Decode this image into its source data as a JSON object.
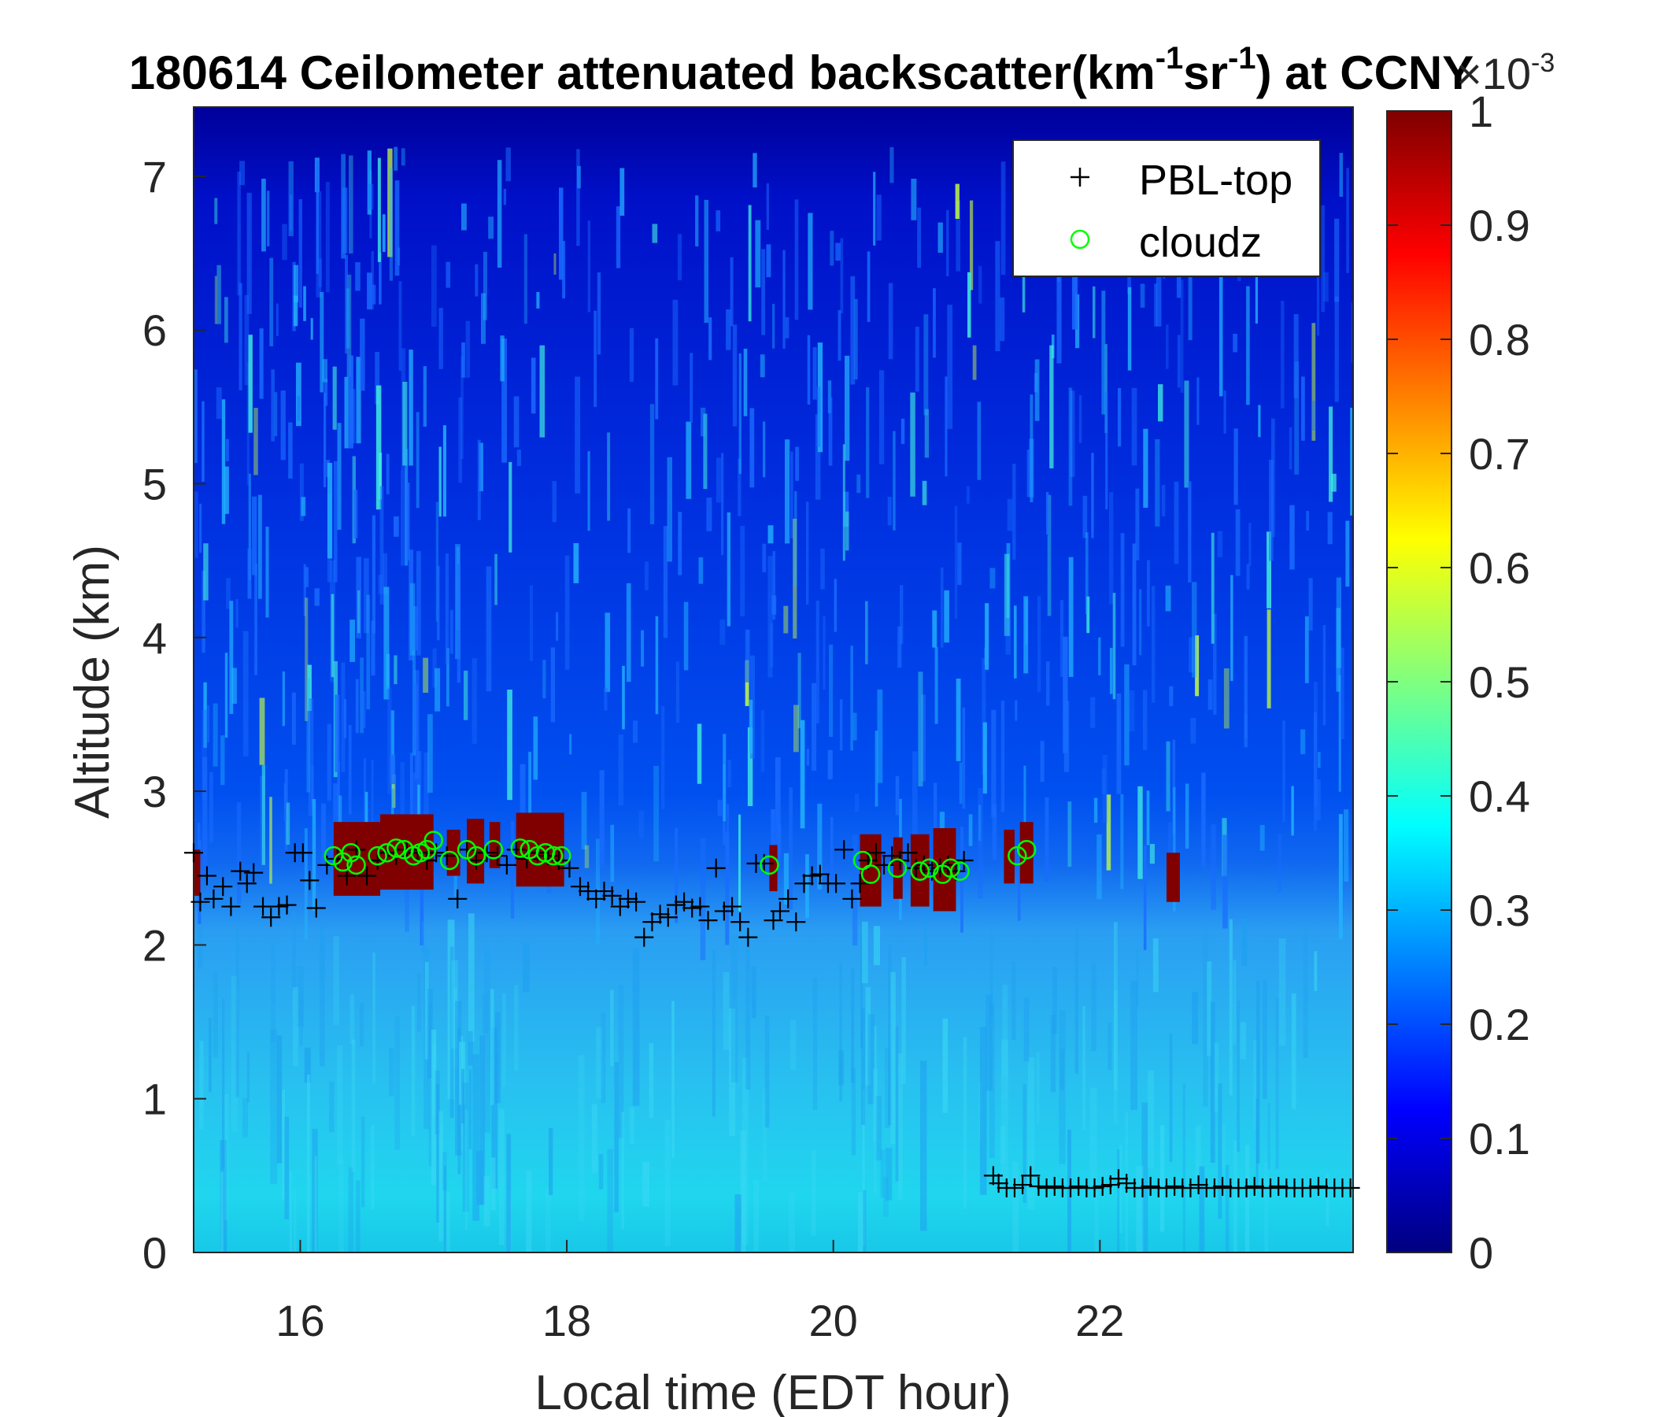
{
  "chart_data": {
    "type": "heatmap",
    "title": {
      "main": "180614 Ceilometer attenuated backscatter(km",
      "sup1": "-1",
      "mid": "sr",
      "sup2": "-1",
      "end": ") at CCNY"
    },
    "xlabel": "Local time (EDT hour)",
    "ylabel": "Altitude (km)",
    "xlim": [
      15.2,
      23.9
    ],
    "ylim": [
      0,
      7.45
    ],
    "xticks": [
      "16",
      "18",
      "20",
      "22"
    ],
    "yticks": [
      "0",
      "1",
      "2",
      "3",
      "4",
      "5",
      "6",
      "7"
    ],
    "colorbar": {
      "min": 0,
      "max": 1,
      "ticks": [
        "0",
        "0.1",
        "0.2",
        "0.3",
        "0.4",
        "0.5",
        "0.6",
        "0.7",
        "0.8",
        "0.9",
        "1"
      ],
      "exponent_label": "×10",
      "exponent": "-3",
      "colormap": "jet"
    },
    "legend": {
      "position": "top-right",
      "entries": [
        {
          "label": "PBL-top",
          "marker": "+",
          "color": "#000000"
        },
        {
          "label": "cloudz",
          "marker": "o",
          "color": "#00ff00"
        }
      ]
    },
    "cloud_blocks": [
      {
        "x0": 15.2,
        "x1": 15.25,
        "y0": 2.32,
        "y1": 2.62
      },
      {
        "x0": 16.25,
        "x1": 16.6,
        "y0": 2.32,
        "y1": 2.8
      },
      {
        "x0": 16.6,
        "x1": 17.0,
        "y0": 2.36,
        "y1": 2.85
      },
      {
        "x0": 17.1,
        "x1": 17.2,
        "y0": 2.45,
        "y1": 2.75
      },
      {
        "x0": 17.25,
        "x1": 17.38,
        "y0": 2.4,
        "y1": 2.82
      },
      {
        "x0": 17.42,
        "x1": 17.5,
        "y0": 2.5,
        "y1": 2.8
      },
      {
        "x0": 17.62,
        "x1": 17.98,
        "y0": 2.38,
        "y1": 2.86
      },
      {
        "x0": 19.52,
        "x1": 19.58,
        "y0": 2.35,
        "y1": 2.65
      },
      {
        "x0": 20.2,
        "x1": 20.36,
        "y0": 2.25,
        "y1": 2.72
      },
      {
        "x0": 20.45,
        "x1": 20.52,
        "y0": 2.3,
        "y1": 2.7
      },
      {
        "x0": 20.58,
        "x1": 20.72,
        "y0": 2.25,
        "y1": 2.72
      },
      {
        "x0": 20.75,
        "x1": 20.92,
        "y0": 2.22,
        "y1": 2.76
      },
      {
        "x0": 21.28,
        "x1": 21.36,
        "y0": 2.4,
        "y1": 2.75
      },
      {
        "x0": 21.4,
        "x1": 21.5,
        "y0": 2.4,
        "y1": 2.8
      },
      {
        "x0": 22.5,
        "x1": 22.6,
        "y0": 2.28,
        "y1": 2.6
      }
    ],
    "series": [
      {
        "name": "PBL-top",
        "x": [
          15.2,
          15.25,
          15.3,
          15.35,
          15.42,
          15.48,
          15.55,
          15.6,
          15.65,
          15.72,
          15.78,
          15.84,
          15.9,
          15.96,
          16.02,
          16.07,
          16.12,
          16.2,
          16.28,
          16.35,
          16.42,
          16.5,
          16.58,
          16.65,
          16.72,
          16.8,
          16.88,
          16.95,
          17.02,
          17.1,
          17.18,
          17.25,
          17.32,
          17.4,
          17.48,
          17.55,
          17.62,
          17.7,
          17.78,
          17.86,
          17.94,
          18.02,
          18.1,
          18.16,
          18.22,
          18.28,
          18.34,
          18.4,
          18.46,
          18.52,
          18.58,
          18.64,
          18.7,
          18.76,
          18.82,
          18.88,
          18.94,
          19.0,
          19.06,
          19.12,
          19.18,
          19.24,
          19.3,
          19.36,
          19.42,
          19.48,
          19.55,
          19.6,
          19.66,
          19.72,
          19.78,
          19.84,
          19.9,
          19.96,
          20.02,
          20.08,
          20.14,
          20.2,
          20.26,
          20.32,
          20.38,
          20.44,
          20.5,
          20.56,
          20.62,
          20.68,
          20.74,
          20.8,
          20.86,
          20.92,
          20.98,
          21.2,
          21.24,
          21.3,
          21.36,
          21.42,
          21.48,
          21.54,
          21.6,
          21.66,
          21.72,
          21.78,
          21.84,
          21.9,
          21.96,
          22.02,
          22.08,
          22.14,
          22.2,
          22.26,
          22.32,
          22.38,
          22.44,
          22.5,
          22.56,
          22.62,
          22.68,
          22.74,
          22.8,
          22.86,
          22.92,
          22.98,
          23.04,
          23.1,
          23.16,
          23.22,
          23.28,
          23.34,
          23.4,
          23.46,
          23.52,
          23.58,
          23.64,
          23.7,
          23.76,
          23.82,
          23.88
        ],
        "y": [
          2.6,
          2.28,
          2.45,
          2.3,
          2.38,
          2.25,
          2.48,
          2.4,
          2.47,
          2.25,
          2.18,
          2.25,
          2.26,
          2.6,
          2.6,
          2.42,
          2.24,
          2.52,
          2.56,
          2.45,
          2.62,
          2.45,
          2.55,
          2.6,
          2.58,
          2.62,
          2.6,
          2.55,
          2.6,
          2.58,
          2.3,
          2.62,
          2.55,
          2.6,
          2.58,
          2.52,
          2.62,
          2.56,
          2.6,
          2.58,
          2.55,
          2.5,
          2.38,
          2.35,
          2.3,
          2.35,
          2.32,
          2.25,
          2.3,
          2.28,
          2.05,
          2.15,
          2.2,
          2.18,
          2.26,
          2.28,
          2.24,
          2.25,
          2.16,
          2.5,
          2.22,
          2.25,
          2.15,
          2.05,
          2.53,
          2.53,
          2.16,
          2.22,
          2.3,
          2.15,
          2.4,
          2.45,
          2.46,
          2.4,
          2.4,
          2.62,
          2.3,
          2.4,
          2.55,
          2.6,
          2.52,
          2.58,
          2.55,
          2.6,
          2.5,
          2.52,
          2.48,
          2.5,
          2.52,
          2.48,
          2.55,
          0.5,
          0.45,
          0.42,
          0.42,
          0.44,
          0.5,
          0.43,
          0.42,
          0.43,
          0.42,
          0.42,
          0.43,
          0.42,
          0.42,
          0.43,
          0.44,
          0.48,
          0.45,
          0.42,
          0.42,
          0.43,
          0.42,
          0.42,
          0.43,
          0.42,
          0.42,
          0.44,
          0.42,
          0.42,
          0.43,
          0.42,
          0.42,
          0.42,
          0.43,
          0.42,
          0.42,
          0.43,
          0.42,
          0.42,
          0.42,
          0.42,
          0.43,
          0.42,
          0.42,
          0.42,
          0.42
        ]
      },
      {
        "name": "cloudz",
        "x": [
          16.25,
          16.32,
          16.38,
          16.42,
          16.58,
          16.65,
          16.72,
          16.78,
          16.85,
          16.9,
          16.95,
          17.0,
          17.12,
          17.25,
          17.32,
          17.45,
          17.65,
          17.72,
          17.78,
          17.84,
          17.9,
          17.96,
          19.52,
          20.22,
          20.28,
          20.48,
          20.65,
          20.72,
          20.82,
          20.88,
          20.95,
          21.38,
          21.45
        ],
        "y": [
          2.58,
          2.54,
          2.6,
          2.52,
          2.58,
          2.6,
          2.63,
          2.62,
          2.58,
          2.6,
          2.62,
          2.68,
          2.55,
          2.62,
          2.58,
          2.62,
          2.63,
          2.62,
          2.58,
          2.6,
          2.58,
          2.58,
          2.52,
          2.55,
          2.46,
          2.5,
          2.48,
          2.5,
          2.46,
          2.5,
          2.48,
          2.58,
          2.62
        ]
      }
    ]
  }
}
